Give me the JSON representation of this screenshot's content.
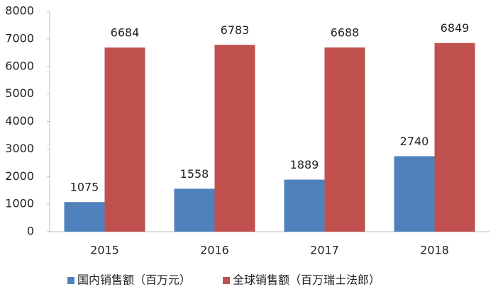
{
  "chart_data": {
    "type": "bar",
    "categories": [
      "2015",
      "2016",
      "2017",
      "2018"
    ],
    "series": [
      {
        "name": "国内销售额（百万元）",
        "color": "#4f81bd",
        "values": [
          1075,
          1558,
          1889,
          2740
        ]
      },
      {
        "name": "全球销售额（百万瑞士法郎）",
        "color": "#c0504d",
        "values": [
          6684,
          6783,
          6688,
          6849
        ]
      }
    ],
    "ylim": [
      0,
      8000
    ],
    "yticks": [
      0,
      1000,
      2000,
      3000,
      4000,
      5000,
      6000,
      7000,
      8000
    ],
    "grid": false,
    "legend": "bottom"
  }
}
